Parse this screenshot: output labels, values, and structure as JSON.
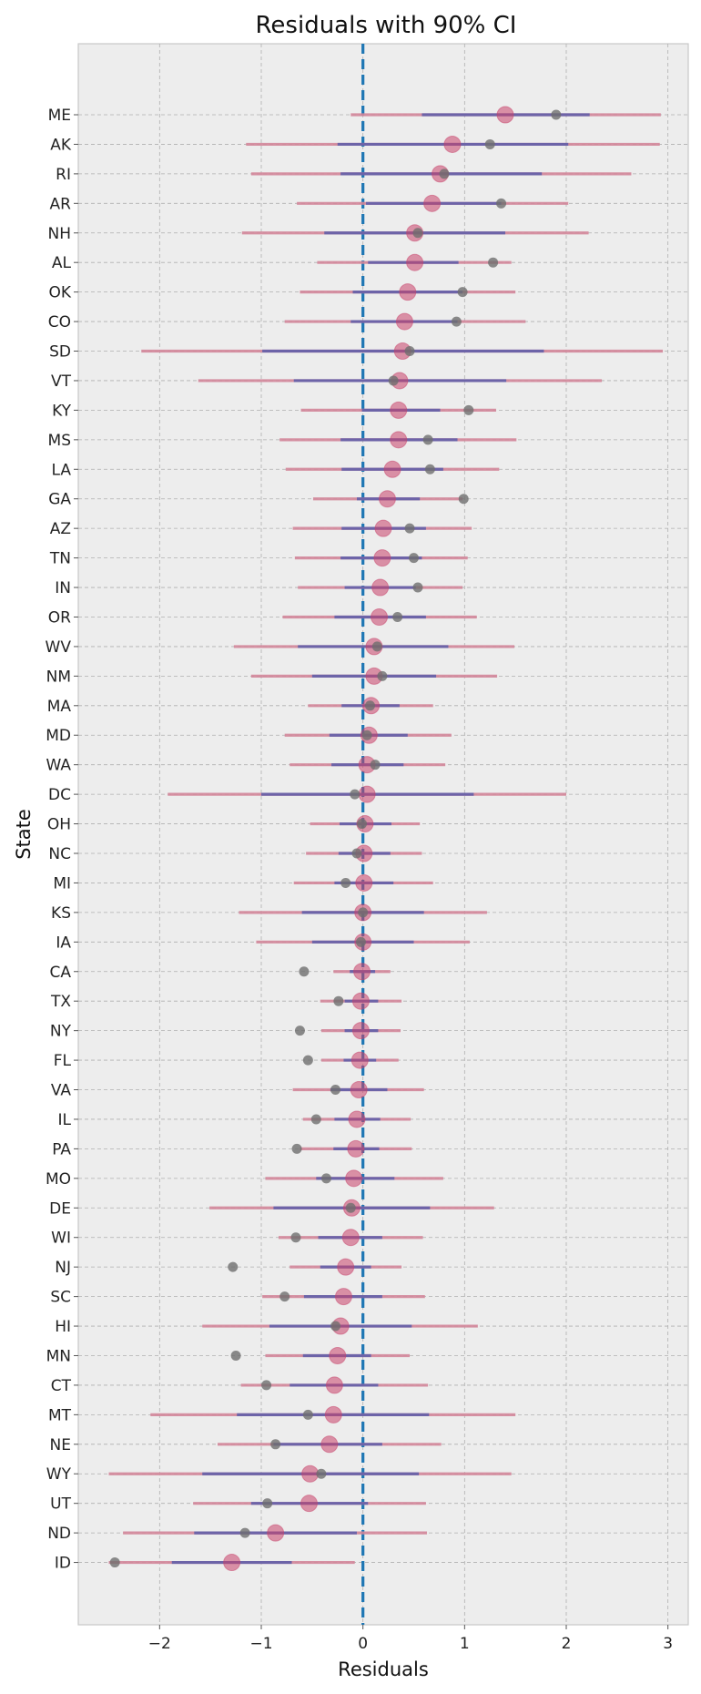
{
  "chart_data": {
    "type": "scatter",
    "title": "Residuals with 90% CI",
    "xlabel": "Residuals",
    "ylabel": "State",
    "xlim": [
      -2.8,
      3.2
    ],
    "xticks": [
      -2,
      -1,
      0,
      1,
      2,
      3
    ],
    "xtick_labels": [
      "−2",
      "−1",
      "0",
      "1",
      "2",
      "3"
    ],
    "grid": true,
    "reference_line": {
      "x": 0,
      "style": "dashed",
      "color": "#1f77b4"
    },
    "colors": {
      "background": "#ededed",
      "inner_ci": "#6d64a8",
      "outer_ci": "#d3879a",
      "estimate": "#c8426a",
      "observed": "#6e6e6e"
    },
    "series": [
      {
        "state": "ME",
        "estimate": 1.4,
        "observed": 1.9,
        "ci90": [
          -0.12,
          2.93
        ],
        "ci50": [
          0.58,
          2.23
        ]
      },
      {
        "state": "AK",
        "estimate": 0.88,
        "observed": 1.25,
        "ci90": [
          -1.15,
          2.92
        ],
        "ci50": [
          -0.25,
          2.02
        ]
      },
      {
        "state": "RI",
        "estimate": 0.76,
        "observed": 0.8,
        "ci90": [
          -1.1,
          2.64
        ],
        "ci50": [
          -0.22,
          1.76
        ]
      },
      {
        "state": "AR",
        "estimate": 0.68,
        "observed": 1.36,
        "ci90": [
          -0.65,
          2.02
        ],
        "ci50": [
          0.03,
          1.36
        ]
      },
      {
        "state": "NH",
        "estimate": 0.51,
        "observed": 0.54,
        "ci90": [
          -1.19,
          2.22
        ],
        "ci50": [
          -0.38,
          1.4
        ]
      },
      {
        "state": "AL",
        "estimate": 0.51,
        "observed": 1.28,
        "ci90": [
          -0.45,
          1.46
        ],
        "ci50": [
          0.05,
          0.94
        ]
      },
      {
        "state": "OK",
        "estimate": 0.44,
        "observed": 0.98,
        "ci90": [
          -0.62,
          1.5
        ],
        "ci50": [
          -0.1,
          0.98
        ]
      },
      {
        "state": "CO",
        "estimate": 0.41,
        "observed": 0.92,
        "ci90": [
          -0.77,
          1.6
        ],
        "ci50": [
          -0.12,
          0.93
        ]
      },
      {
        "state": "SD",
        "estimate": 0.39,
        "observed": 0.46,
        "ci90": [
          -2.18,
          2.95
        ],
        "ci50": [
          -0.99,
          1.78
        ]
      },
      {
        "state": "VT",
        "estimate": 0.36,
        "observed": 0.3,
        "ci90": [
          -1.62,
          2.35
        ],
        "ci50": [
          -0.68,
          1.41
        ]
      },
      {
        "state": "KY",
        "estimate": 0.35,
        "observed": 1.04,
        "ci90": [
          -0.61,
          1.31
        ],
        "ci50": [
          -0.01,
          0.76
        ]
      },
      {
        "state": "MS",
        "estimate": 0.35,
        "observed": 0.64,
        "ci90": [
          -0.82,
          1.51
        ],
        "ci50": [
          -0.22,
          0.93
        ]
      },
      {
        "state": "LA",
        "estimate": 0.29,
        "observed": 0.66,
        "ci90": [
          -0.76,
          1.34
        ],
        "ci50": [
          -0.21,
          0.79
        ]
      },
      {
        "state": "GA",
        "estimate": 0.24,
        "observed": 0.99,
        "ci90": [
          -0.49,
          0.98
        ],
        "ci50": [
          -0.06,
          0.56
        ]
      },
      {
        "state": "AZ",
        "estimate": 0.2,
        "observed": 0.46,
        "ci90": [
          -0.69,
          1.07
        ],
        "ci50": [
          -0.21,
          0.62
        ]
      },
      {
        "state": "TN",
        "estimate": 0.19,
        "observed": 0.5,
        "ci90": [
          -0.67,
          1.03
        ],
        "ci50": [
          -0.22,
          0.58
        ]
      },
      {
        "state": "IN",
        "estimate": 0.17,
        "observed": 0.54,
        "ci90": [
          -0.64,
          0.98
        ],
        "ci50": [
          -0.18,
          0.52
        ]
      },
      {
        "state": "OR",
        "estimate": 0.16,
        "observed": 0.34,
        "ci90": [
          -0.79,
          1.12
        ],
        "ci50": [
          -0.28,
          0.62
        ]
      },
      {
        "state": "WV",
        "estimate": 0.11,
        "observed": 0.14,
        "ci90": [
          -1.27,
          1.49
        ],
        "ci50": [
          -0.64,
          0.84
        ]
      },
      {
        "state": "NM",
        "estimate": 0.11,
        "observed": 0.19,
        "ci90": [
          -1.1,
          1.32
        ],
        "ci50": [
          -0.5,
          0.72
        ]
      },
      {
        "state": "MA",
        "estimate": 0.08,
        "observed": 0.07,
        "ci90": [
          -0.54,
          0.69
        ],
        "ci50": [
          -0.21,
          0.36
        ]
      },
      {
        "state": "MD",
        "estimate": 0.06,
        "observed": 0.04,
        "ci90": [
          -0.77,
          0.87
        ],
        "ci50": [
          -0.33,
          0.44
        ]
      },
      {
        "state": "WA",
        "estimate": 0.04,
        "observed": 0.12,
        "ci90": [
          -0.72,
          0.81
        ],
        "ci50": [
          -0.31,
          0.4
        ]
      },
      {
        "state": "DC",
        "estimate": 0.04,
        "observed": -0.08,
        "ci90": [
          -1.92,
          2.0
        ],
        "ci50": [
          -1.0,
          1.09
        ]
      },
      {
        "state": "OH",
        "estimate": 0.02,
        "observed": -0.01,
        "ci90": [
          -0.52,
          0.56
        ],
        "ci50": [
          -0.23,
          0.28
        ]
      },
      {
        "state": "NC",
        "estimate": 0.01,
        "observed": -0.06,
        "ci90": [
          -0.56,
          0.58
        ],
        "ci50": [
          -0.24,
          0.27
        ]
      },
      {
        "state": "MI",
        "estimate": 0.01,
        "observed": -0.17,
        "ci90": [
          -0.68,
          0.69
        ],
        "ci50": [
          -0.28,
          0.3
        ]
      },
      {
        "state": "KS",
        "estimate": 0.0,
        "observed": 0.0,
        "ci90": [
          -1.22,
          1.22
        ],
        "ci50": [
          -0.6,
          0.6
        ]
      },
      {
        "state": "IA",
        "estimate": 0.0,
        "observed": -0.02,
        "ci90": [
          -1.05,
          1.05
        ],
        "ci50": [
          -0.5,
          0.5
        ]
      },
      {
        "state": "CA",
        "estimate": -0.01,
        "observed": -0.58,
        "ci90": [
          -0.29,
          0.27
        ],
        "ci50": [
          -0.13,
          0.12
        ]
      },
      {
        "state": "TX",
        "estimate": -0.02,
        "observed": -0.24,
        "ci90": [
          -0.42,
          0.38
        ],
        "ci50": [
          -0.18,
          0.15
        ]
      },
      {
        "state": "NY",
        "estimate": -0.02,
        "observed": -0.62,
        "ci90": [
          -0.41,
          0.37
        ],
        "ci50": [
          -0.18,
          0.15
        ]
      },
      {
        "state": "FL",
        "estimate": -0.03,
        "observed": -0.54,
        "ci90": [
          -0.41,
          0.35
        ],
        "ci50": [
          -0.19,
          0.13
        ]
      },
      {
        "state": "VA",
        "estimate": -0.04,
        "observed": -0.27,
        "ci90": [
          -0.69,
          0.6
        ],
        "ci50": [
          -0.32,
          0.24
        ]
      },
      {
        "state": "IL",
        "estimate": -0.06,
        "observed": -0.46,
        "ci90": [
          -0.59,
          0.47
        ],
        "ci50": [
          -0.28,
          0.17
        ]
      },
      {
        "state": "PA",
        "estimate": -0.07,
        "observed": -0.65,
        "ci90": [
          -0.62,
          0.48
        ],
        "ci50": [
          -0.29,
          0.16
        ]
      },
      {
        "state": "MO",
        "estimate": -0.09,
        "observed": -0.36,
        "ci90": [
          -0.96,
          0.79
        ],
        "ci50": [
          -0.46,
          0.31
        ]
      },
      {
        "state": "DE",
        "estimate": -0.11,
        "observed": -0.12,
        "ci90": [
          -1.51,
          1.29
        ],
        "ci50": [
          -0.88,
          0.66
        ]
      },
      {
        "state": "WI",
        "estimate": -0.12,
        "observed": -0.66,
        "ci90": [
          -0.83,
          0.59
        ],
        "ci50": [
          -0.44,
          0.19
        ]
      },
      {
        "state": "NJ",
        "estimate": -0.17,
        "observed": -1.28,
        "ci90": [
          -0.72,
          0.38
        ],
        "ci50": [
          -0.42,
          0.08
        ]
      },
      {
        "state": "SC",
        "estimate": -0.19,
        "observed": -0.77,
        "ci90": [
          -0.99,
          0.61
        ],
        "ci50": [
          -0.58,
          0.19
        ]
      },
      {
        "state": "HI",
        "estimate": -0.22,
        "observed": -0.27,
        "ci90": [
          -1.58,
          1.13
        ],
        "ci50": [
          -0.92,
          0.48
        ]
      },
      {
        "state": "MN",
        "estimate": -0.25,
        "observed": -1.25,
        "ci90": [
          -0.96,
          0.46
        ],
        "ci50": [
          -0.59,
          0.08
        ]
      },
      {
        "state": "CT",
        "estimate": -0.28,
        "observed": -0.95,
        "ci90": [
          -1.2,
          0.64
        ],
        "ci50": [
          -0.72,
          0.15
        ]
      },
      {
        "state": "MT",
        "estimate": -0.29,
        "observed": -0.54,
        "ci90": [
          -2.09,
          1.5
        ],
        "ci50": [
          -1.24,
          0.65
        ]
      },
      {
        "state": "NE",
        "estimate": -0.33,
        "observed": -0.86,
        "ci90": [
          -1.43,
          0.77
        ],
        "ci50": [
          -0.88,
          0.19
        ]
      },
      {
        "state": "WY",
        "estimate": -0.52,
        "observed": -0.41,
        "ci90": [
          -2.5,
          1.46
        ],
        "ci50": [
          -1.58,
          0.55
        ]
      },
      {
        "state": "UT",
        "estimate": -0.53,
        "observed": -0.94,
        "ci90": [
          -1.67,
          0.62
        ],
        "ci50": [
          -1.1,
          0.05
        ]
      },
      {
        "state": "ND",
        "estimate": -0.86,
        "observed": -1.16,
        "ci90": [
          -2.36,
          0.63
        ],
        "ci50": [
          -1.66,
          -0.06
        ]
      },
      {
        "state": "ID",
        "estimate": -1.29,
        "observed": -2.44,
        "ci90": [
          -2.5,
          -0.08
        ],
        "ci50": [
          -1.88,
          -0.7
        ]
      }
    ]
  }
}
